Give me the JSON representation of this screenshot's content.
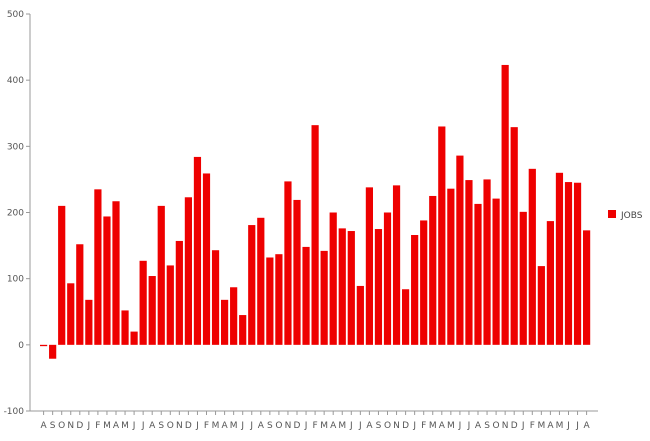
{
  "chart_data": {
    "type": "bar",
    "ylim": [
      -100,
      500
    ],
    "yticks": [
      -100,
      0,
      100,
      200,
      300,
      400,
      500
    ],
    "categories": [
      "A",
      "S",
      "O",
      "N",
      "D",
      "J",
      "F",
      "M",
      "A",
      "M",
      "J",
      "J",
      "A",
      "S",
      "O",
      "N",
      "D",
      "J",
      "F",
      "M",
      "A",
      "M",
      "J",
      "J",
      "A",
      "S",
      "O",
      "N",
      "D",
      "J",
      "F",
      "M",
      "A",
      "M",
      "J",
      "J",
      "A",
      "S",
      "O",
      "N",
      "D",
      "J",
      "F",
      "M",
      "A",
      "M",
      "J",
      "J",
      "A",
      "S",
      "O",
      "N",
      "D",
      "J",
      "F",
      "M",
      "A",
      "M",
      "J",
      "J",
      "A"
    ],
    "series": [
      {
        "name": "JOBS",
        "color": "#ee0000",
        "values": [
          -2,
          -21,
          210,
          93,
          152,
          68,
          235,
          194,
          217,
          52,
          20,
          127,
          104,
          210,
          120,
          157,
          223,
          284,
          259,
          143,
          68,
          87,
          45,
          181,
          192,
          132,
          137,
          247,
          219,
          148,
          332,
          142,
          200,
          176,
          172,
          89,
          238,
          175,
          200,
          241,
          84,
          166,
          188,
          225,
          330,
          236,
          286,
          249,
          213,
          250,
          221,
          423,
          329,
          201,
          266,
          119,
          187,
          260,
          246,
          245,
          173
        ]
      }
    ],
    "legend": {
      "position": "right"
    },
    "grid": false
  }
}
